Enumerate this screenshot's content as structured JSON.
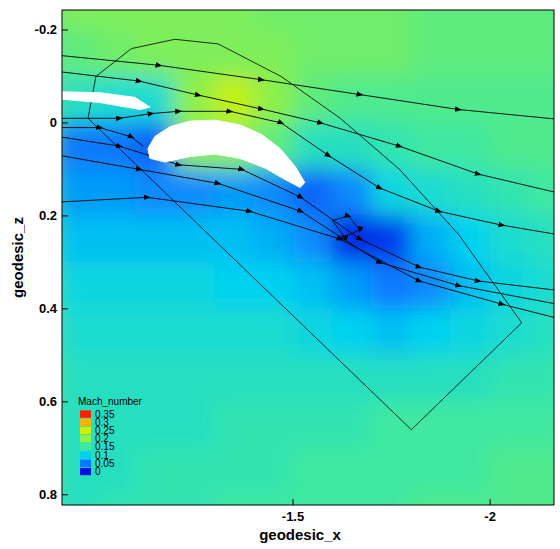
{
  "chart_data": {
    "type": "contour",
    "x_label": "geodesic_x",
    "y_label": "geodesic_z",
    "xlim": [
      -0.914,
      -2.162
    ],
    "ylim": [
      -0.243,
      0.822
    ],
    "xticks": [
      -1.5,
      -2
    ],
    "yticks": [
      -0.2,
      0,
      0.2,
      0.4,
      0.6,
      0.8
    ],
    "x_edges": [
      -0.9,
      -1.0,
      -1.1,
      -1.2,
      -1.3,
      -1.4,
      -1.5,
      -1.6,
      -1.7,
      -1.8,
      -1.9,
      -2.0,
      -2.1,
      -2.2
    ],
    "z_edges": [
      -0.3,
      -0.2,
      -0.1,
      0.0,
      0.1,
      0.2,
      0.3,
      0.4,
      0.5,
      0.6,
      0.7,
      0.8,
      0.9
    ],
    "cells": [
      [
        0.19,
        0.19,
        0.19,
        0.19,
        0.19,
        0.18,
        0.18,
        0.18,
        0.18,
        0.17,
        0.17,
        0.17,
        0.17
      ],
      [
        0.17,
        0.18,
        0.19,
        0.19,
        0.19,
        0.19,
        0.18,
        0.18,
        0.18,
        0.17,
        0.17,
        0.17,
        0.17
      ],
      [
        0.13,
        0.12,
        0.12,
        0.2,
        0.24,
        0.2,
        0.17,
        0.16,
        0.16,
        0.16,
        0.16,
        0.16,
        0.16
      ],
      [
        0.05,
        0.05,
        0.04,
        0.2,
        0.2,
        0.17,
        0.13,
        0.13,
        0.14,
        0.15,
        0.15,
        0.16,
        0.16
      ],
      [
        0.07,
        0.07,
        0.06,
        0.06,
        0.07,
        0.06,
        0.04,
        0.06,
        0.11,
        0.12,
        0.13,
        0.14,
        0.15
      ],
      [
        0.09,
        0.09,
        0.09,
        0.09,
        0.09,
        0.08,
        0.06,
        0.01,
        0.02,
        0.08,
        0.1,
        0.12,
        0.13
      ],
      [
        0.11,
        0.11,
        0.11,
        0.11,
        0.1,
        0.1,
        0.09,
        0.07,
        0.05,
        0.06,
        0.09,
        0.11,
        0.12
      ],
      [
        0.12,
        0.12,
        0.12,
        0.12,
        0.12,
        0.12,
        0.11,
        0.1,
        0.09,
        0.1,
        0.11,
        0.12,
        0.13
      ],
      [
        0.13,
        0.13,
        0.13,
        0.13,
        0.13,
        0.13,
        0.13,
        0.13,
        0.13,
        0.13,
        0.13,
        0.14,
        0.14
      ],
      [
        0.13,
        0.13,
        0.13,
        0.13,
        0.14,
        0.14,
        0.14,
        0.14,
        0.15,
        0.15,
        0.15,
        0.15,
        0.15
      ],
      [
        0.13,
        0.13,
        0.14,
        0.14,
        0.14,
        0.14,
        0.15,
        0.15,
        0.15,
        0.15,
        0.15,
        0.16,
        0.16
      ],
      [
        0.13,
        0.14,
        0.14,
        0.14,
        0.15,
        0.15,
        0.15,
        0.15,
        0.15,
        0.16,
        0.16,
        0.16,
        0.16
      ]
    ],
    "colorbar": {
      "title": "Mach_number",
      "range": [
        0,
        0.35
      ],
      "ticks": [
        0,
        0.05,
        0.1,
        0.15,
        0.2,
        0.25,
        0.3,
        0.35
      ],
      "colors": [
        "#0010e0",
        "#0a78ff",
        "#00d2f0",
        "#40e8a0",
        "#8ef048",
        "#d0f000",
        "#ffb000",
        "#ff2000"
      ]
    },
    "elements": [
      {
        "x": [
          -1.132,
          -1.15,
          -1.188,
          -1.239,
          -1.302,
          -1.365,
          -1.421,
          -1.467,
          -1.505,
          -1.53,
          -1.518,
          -1.48,
          -1.429,
          -1.365,
          -1.302,
          -1.239,
          -1.175,
          -1.137
        ],
        "z": [
          0.055,
          0.029,
          0.008,
          -0.004,
          -0.006,
          0.004,
          0.025,
          0.055,
          0.093,
          0.128,
          0.139,
          0.122,
          0.097,
          0.076,
          0.067,
          0.072,
          0.084,
          0.076
        ]
      },
      {
        "x": [
          -0.914,
          -1.01,
          -1.099,
          -1.137,
          -1.112,
          -1.01,
          -0.914
        ],
        "z": [
          -0.067,
          -0.065,
          -0.055,
          -0.034,
          -0.029,
          -0.044,
          -0.051
        ]
      }
    ],
    "boundary": {
      "x": [
        -0.98,
        -1.0,
        -1.09,
        -1.2,
        -1.31,
        -1.47,
        -1.62,
        -1.77,
        -1.92,
        -2.08,
        -1.8,
        -0.98
      ],
      "z": [
        -0.01,
        -0.1,
        -0.16,
        -0.18,
        -0.17,
        -0.1,
        -0.01,
        0.1,
        0.24,
        0.43,
        0.66,
        -0.01
      ]
    },
    "streamlines": [
      {
        "x": [
          -0.91,
          -1.16,
          -1.42,
          -1.67,
          -1.92,
          -2.17
        ],
        "z": [
          -0.145,
          -0.124,
          -0.093,
          -0.061,
          -0.029,
          -0.008
        ]
      },
      {
        "x": [
          -0.91,
          -1.11,
          -1.26,
          -1.42,
          -1.57,
          -1.77,
          -1.97,
          -2.17
        ],
        "z": [
          -0.11,
          -0.09,
          -0.06,
          -0.03,
          0.0,
          0.05,
          0.11,
          0.15
        ]
      },
      {
        "x": [
          -0.91,
          -1.06,
          -1.14,
          -1.21,
          -1.34,
          -1.47,
          -1.59,
          -1.72,
          -1.87,
          -2.03,
          -2.17
        ],
        "z": [
          -0.01,
          -0.01,
          -0.02,
          -0.025,
          -0.025,
          0.0,
          0.07,
          0.14,
          0.19,
          0.22,
          0.24
        ]
      },
      {
        "x": [
          -0.91,
          -1.01,
          -1.09,
          -1.12
        ],
        "z": [
          0.01,
          0.01,
          0.03,
          0.05
        ]
      },
      {
        "x": [
          -0.91,
          -1.06,
          -1.21,
          -1.37,
          -1.52,
          -1.67,
          -1.82,
          -1.97,
          -2.17
        ],
        "z": [
          0.03,
          0.05,
          0.09,
          0.1,
          0.16,
          0.25,
          0.31,
          0.34,
          0.36
        ]
      },
      {
        "x": [
          -0.91,
          -1.11,
          -1.31,
          -1.52,
          -1.72,
          -1.92,
          -2.17
        ],
        "z": [
          0.07,
          0.1,
          0.13,
          0.19,
          0.3,
          0.35,
          0.39
        ]
      },
      {
        "x": [
          -0.91,
          -1.13,
          -1.39,
          -1.62,
          -1.82,
          -2.03,
          -2.17
        ],
        "z": [
          0.17,
          0.16,
          0.19,
          0.25,
          0.34,
          0.39,
          0.42
        ]
      },
      {
        "x": [
          -1.6,
          -1.64,
          -1.67,
          -1.63,
          -1.6
        ],
        "z": [
          0.21,
          0.2,
          0.23,
          0.245,
          0.21
        ]
      }
    ]
  }
}
